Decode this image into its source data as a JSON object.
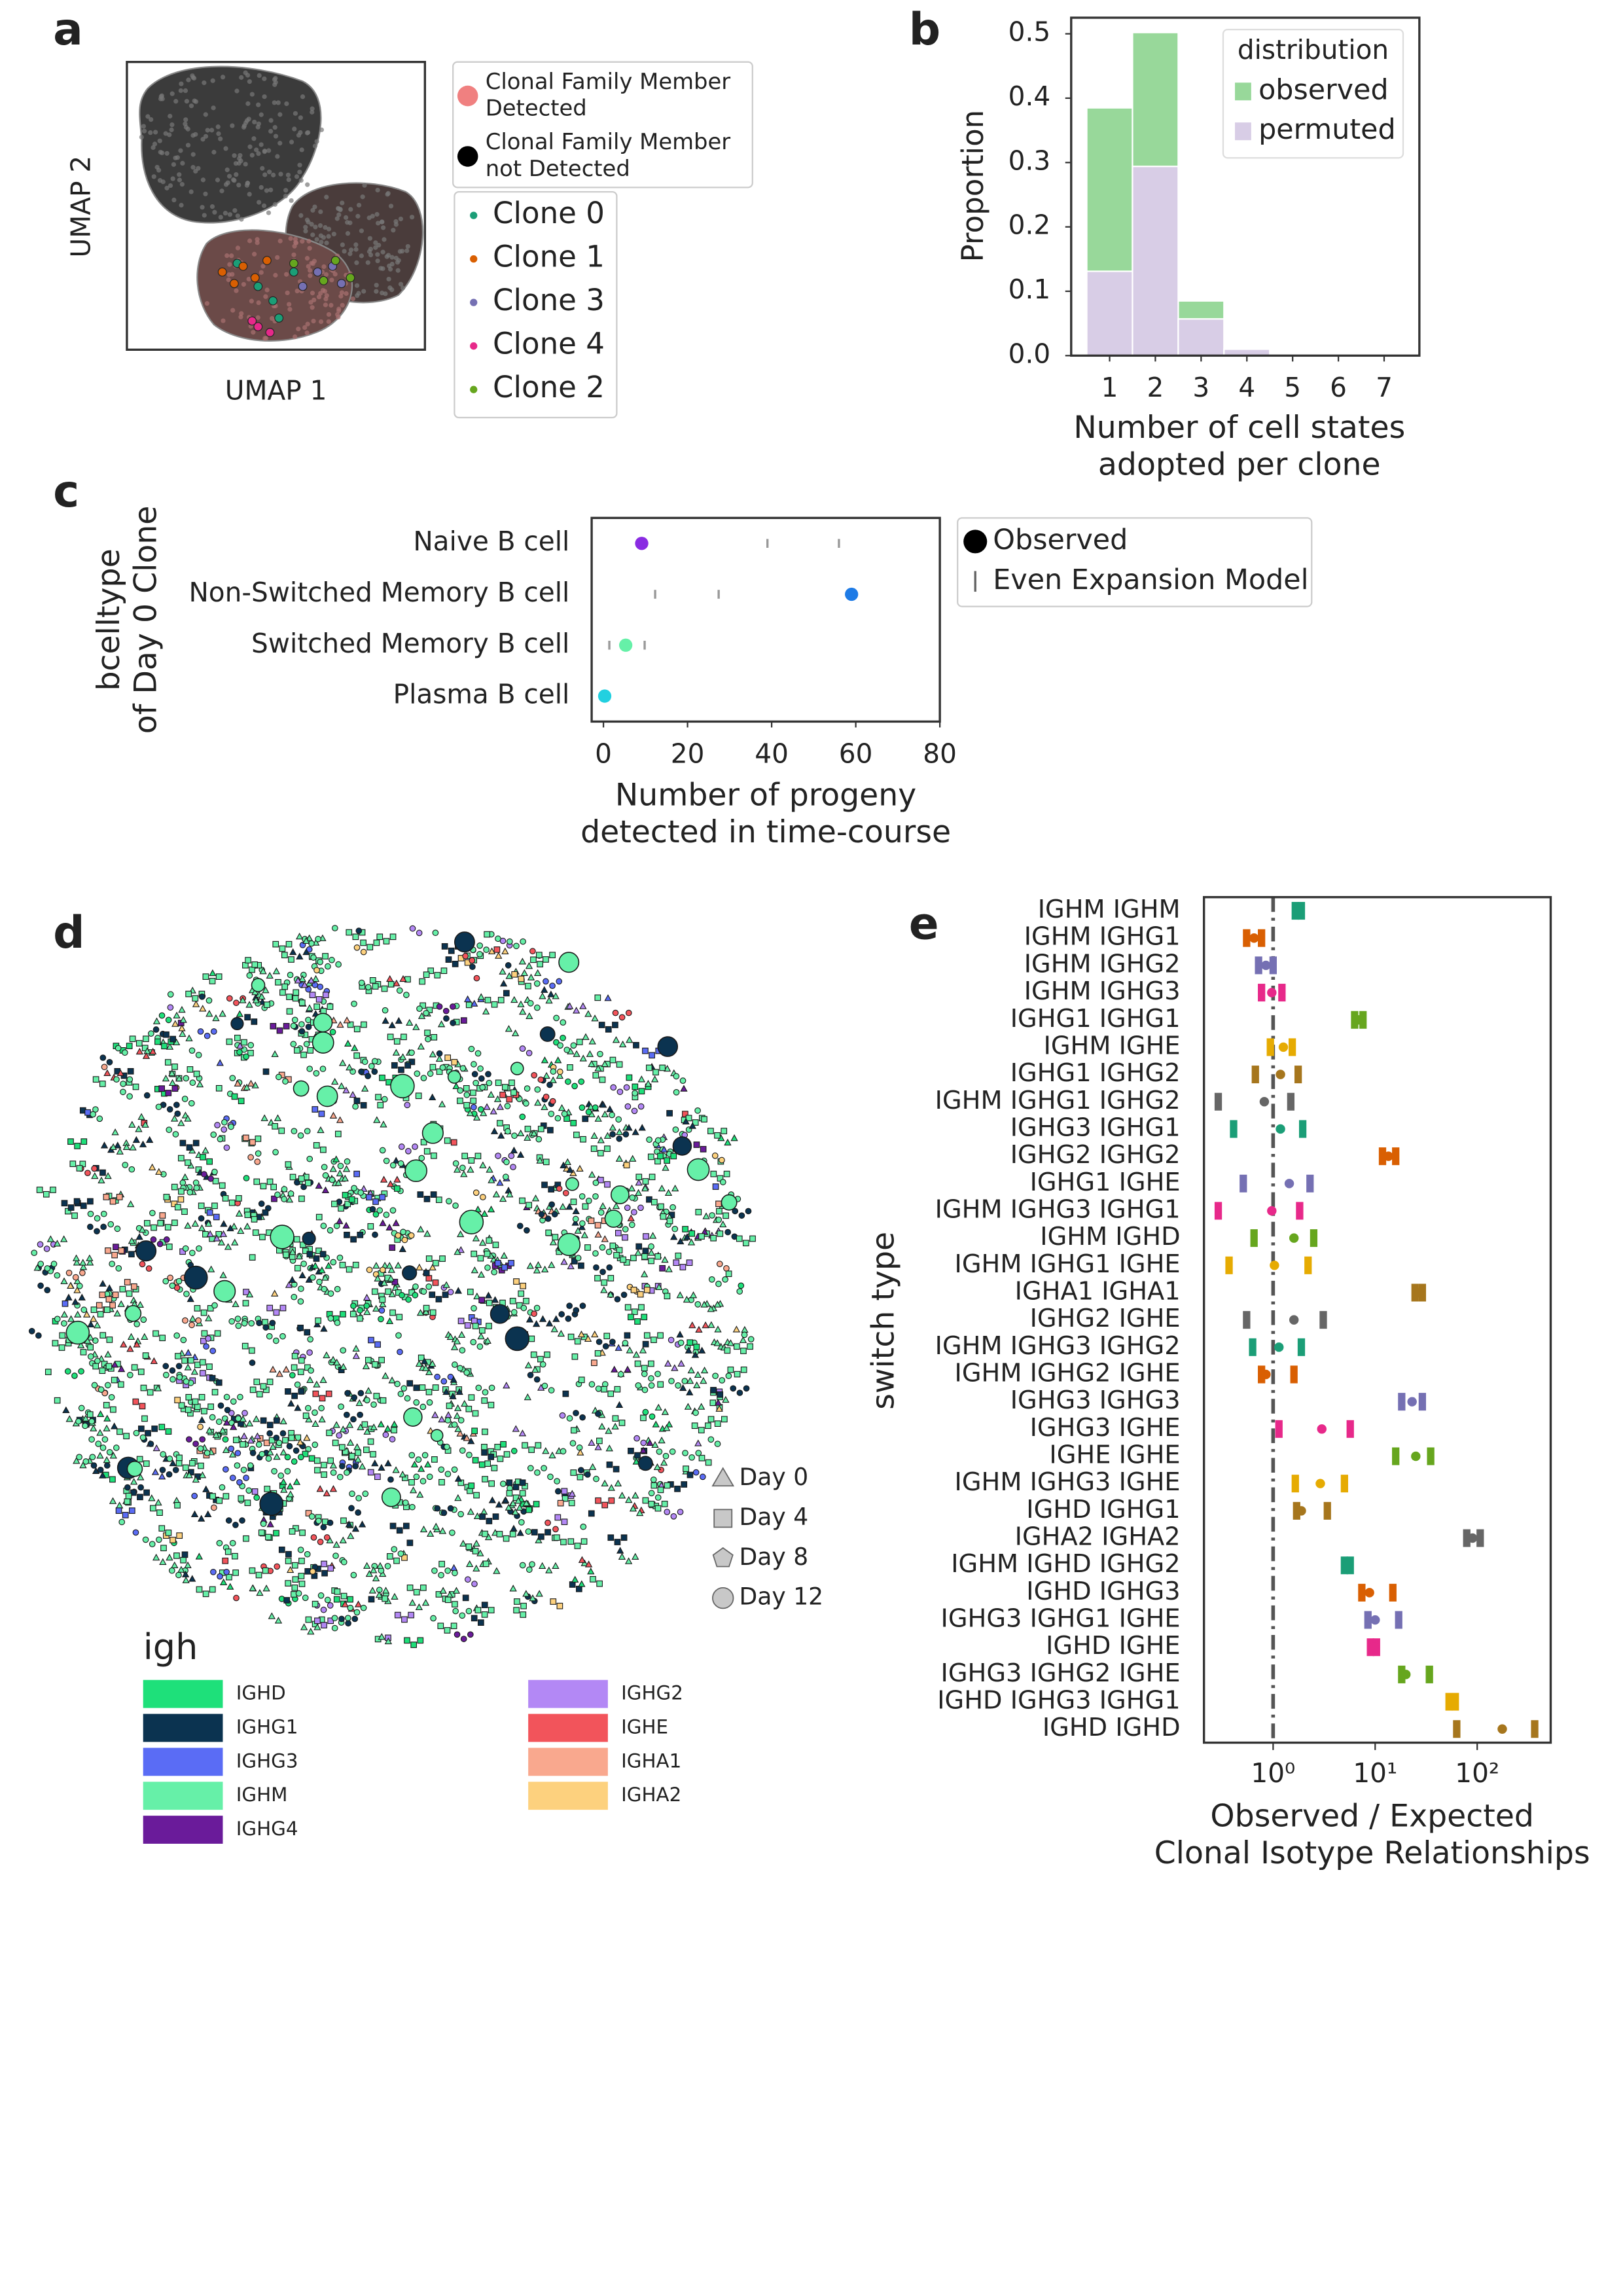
{
  "chart_data": [
    {
      "panel": "a",
      "type": "scatter",
      "xlabel": "UMAP 1",
      "ylabel": "UMAP 2",
      "xlim": [
        0,
        10
      ],
      "ylim": [
        0,
        10
      ],
      "legend_markers": [
        {
          "label": [
            "Clonal Family Member",
            "Detected"
          ],
          "color": "#f08080"
        },
        {
          "label": [
            "Clonal Family Member",
            "not Detected"
          ],
          "color": "#000000"
        }
      ],
      "series": [
        {
          "name": "Clone 0",
          "color": "#1b9e77",
          "x": [
            3.7,
            4.4,
            4.9,
            5.6,
            5.1
          ],
          "y": [
            3.0,
            2.2,
            1.7,
            2.7,
            1.1
          ]
        },
        {
          "name": "Clone 1",
          "color": "#d95f02",
          "x": [
            3.2,
            3.9,
            4.3,
            3.6,
            4.7
          ],
          "y": [
            2.7,
            2.9,
            2.5,
            2.3,
            3.1
          ]
        },
        {
          "name": "Clone 3",
          "color": "#7570b3",
          "x": [
            6.4,
            6.9,
            5.9,
            7.2
          ],
          "y": [
            2.7,
            2.9,
            2.2,
            2.3
          ]
        },
        {
          "name": "Clone 4",
          "color": "#e7298a",
          "x": [
            4.4,
            4.8,
            4.2
          ],
          "y": [
            0.8,
            0.6,
            1.0
          ]
        },
        {
          "name": "Clone 2",
          "color": "#66a61e",
          "x": [
            6.6,
            7.0,
            5.6,
            7.5
          ],
          "y": [
            2.4,
            3.1,
            3.0,
            2.5
          ]
        }
      ]
    },
    {
      "panel": "b",
      "type": "bar",
      "xlabel": [
        "Number of cell states",
        "adopted per clone"
      ],
      "ylabel": "Proportion",
      "legend_title": "distribution",
      "x": [
        1,
        2,
        3,
        4,
        5,
        6,
        7
      ],
      "series": [
        {
          "name": "observed",
          "color": "#98d89a",
          "values": [
            0.385,
            0.502,
            0.085,
            0.008,
            0,
            0,
            0
          ]
        },
        {
          "name": "permuted",
          "color": "#d8cde6",
          "values": [
            0.131,
            0.294,
            0.057,
            0.01,
            0,
            0,
            0
          ]
        }
      ],
      "xlim": [
        0.16,
        7.77
      ],
      "xticks": [
        1,
        2,
        3,
        4,
        5,
        6,
        7
      ],
      "ylim": [
        0,
        0.525
      ],
      "yticks": [
        {
          "value": 0,
          "label": "0.0"
        },
        0.1,
        0.2,
        0.3,
        0.4,
        0.5
      ]
    },
    {
      "panel": "c",
      "type": "dot",
      "categories": [
        "Naive B cell",
        "Non-Switched Memory B cell",
        "Switched Memory B cell",
        "Plasma B cell"
      ],
      "colors": [
        "#8a2be2",
        "#1e7be6",
        "#66f0a8",
        "#22d0e0"
      ],
      "ylabel": [
        "bcelltype",
        "of Day 0 Clone"
      ],
      "xlabel": [
        "Number of progeny",
        "detected in time-course"
      ],
      "xlim": [
        -2.8,
        80
      ],
      "xticks": [
        0,
        20,
        40,
        60,
        80
      ],
      "series": [
        {
          "name": "Observed",
          "values": [
            9.1,
            59,
            5.3,
            0.3
          ]
        },
        {
          "name": "Even Expansion Model",
          "low": [
            39,
            12.3,
            1.4,
            null
          ],
          "high": [
            56,
            27.4,
            9.8,
            null
          ]
        }
      ]
    },
    {
      "panel": "d",
      "type": "network",
      "shape_legend": [
        "Day 0",
        "Day 4",
        "Day 8",
        "Day 12"
      ],
      "legend_title": "igh",
      "categories": [
        "IGHD",
        "IGHG1",
        "IGHG3",
        "IGHM",
        "IGHG4",
        "IGHG2",
        "IGHE",
        "IGHA1",
        "IGHA2"
      ],
      "colors": [
        "#1ee07a",
        "#0b3350",
        "#5a6cf5",
        "#66f0a8",
        "#6a1b9a",
        "#b388f5",
        "#f2545b",
        "#f9a88e",
        "#fdd17e"
      ]
    },
    {
      "panel": "e",
      "type": "interval",
      "ylabel": "switch type",
      "xlabel": [
        "Observed / Expected",
        "Clonal Isotype Relationships"
      ],
      "categories": [
        "IGHM IGHM",
        "IGHM IGHG1",
        "IGHM IGHG2",
        "IGHM IGHG3",
        "IGHG1 IGHG1",
        "IGHM IGHE",
        "IGHG1 IGHG2",
        "IGHM IGHG1 IGHG2",
        "IGHG3 IGHG1",
        "IGHG2 IGHG2",
        "IGHG1 IGHE",
        "IGHM IGHG3 IGHG1",
        "IGHM IGHD",
        "IGHM IGHG1 IGHE",
        "IGHA1 IGHA1",
        "IGHG2 IGHE",
        "IGHM IGHG3 IGHG2",
        "IGHM IGHG2 IGHE",
        "IGHG3 IGHG3",
        "IGHG3 IGHE",
        "IGHE IGHE",
        "IGHM IGHG3 IGHE",
        "IGHD IGHG1",
        "IGHA2 IGHA2",
        "IGHM IGHD IGHG2",
        "IGHD IGHG3",
        "IGHG3 IGHG1 IGHE",
        "IGHD IGHE",
        "IGHG3 IGHG2 IGHE",
        "IGHD IGHG3 IGHG1",
        "IGHD IGHD"
      ],
      "values": [
        1.76,
        0.65,
        0.85,
        0.97,
        6.9,
        1.26,
        1.18,
        0.82,
        1.18,
        13.5,
        1.44,
        0.97,
        1.6,
        1.03,
        27,
        1.6,
        1.14,
        0.85,
        23,
        3.0,
        25,
        2.9,
        1.89,
        90,
        5.3,
        8.8,
        10,
        9.7,
        20,
        57,
        176
      ],
      "low": [
        1.65,
        0.55,
        0.72,
        0.77,
        6.3,
        0.94,
        0.67,
        0.29,
        0.41,
        11.8,
        0.51,
        0.29,
        0.65,
        0.37,
        24.6,
        0.55,
        0.63,
        0.77,
        18.2,
        1.14,
        15.9,
        1.65,
        1.7,
        79,
        5.0,
        7.4,
        8.5,
        9.0,
        18.2,
        53,
        63
      ],
      "high": [
        1.89,
        0.77,
        1.0,
        1.22,
        7.6,
        1.54,
        1.76,
        1.49,
        1.95,
        15.9,
        2.3,
        1.82,
        2.5,
        2.2,
        29,
        3.1,
        1.89,
        1.6,
        29,
        5.7,
        35,
        5.0,
        3.4,
        107,
        5.7,
        14.9,
        17,
        10.3,
        34,
        61,
        366
      ],
      "palette": [
        "#1b9e77",
        "#d95f02",
        "#7570b3",
        "#e7298a",
        "#66a61e",
        "#e6ab02",
        "#a6761d",
        "#666666"
      ],
      "xscale": "log",
      "xlim": [
        0.21,
        525
      ],
      "xticks": [
        {
          "value": 1,
          "label": "10⁰"
        },
        {
          "value": 10,
          "label": "10¹"
        },
        {
          "value": 100,
          "label": "10²"
        }
      ],
      "reference_line": 1
    }
  ]
}
